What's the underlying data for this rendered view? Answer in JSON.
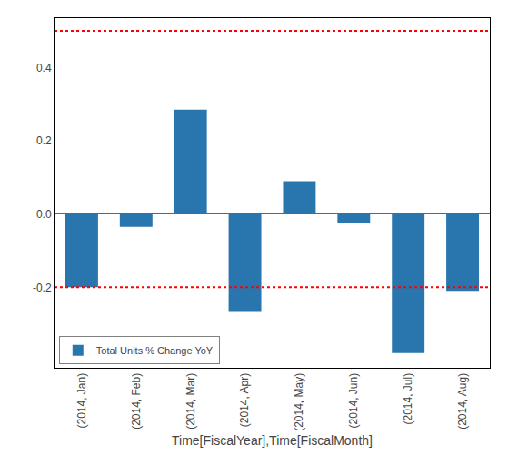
{
  "chart_data": {
    "type": "bar",
    "categories": [
      "(2014, Jan)",
      "(2014, Feb)",
      "(2014, Mar)",
      "(2014, Apr)",
      "(2014, May)",
      "(2014, Jun)",
      "(2014, Jul)",
      "(2014, Aug)"
    ],
    "series": [
      {
        "name": "Total Units % Change YoY",
        "color": "#2976ae",
        "values": [
          -0.2,
          -0.035,
          0.285,
          -0.265,
          0.09,
          -0.025,
          -0.38,
          -0.21
        ]
      }
    ],
    "hlines": [
      {
        "value": 0.5,
        "color": "red",
        "line_style": "dotted"
      },
      {
        "value": -0.2,
        "color": "red",
        "line_style": "dotted"
      }
    ],
    "xlabel": "Time[FiscalYear],Time[FiscalMonth]",
    "ylim": [
      -0.42,
      0.535
    ],
    "yticks": [
      -0.2,
      {
        "value": 0,
        "label": "0.0"
      },
      0.2,
      0.4
    ],
    "grid": false,
    "legend": "lower left"
  }
}
